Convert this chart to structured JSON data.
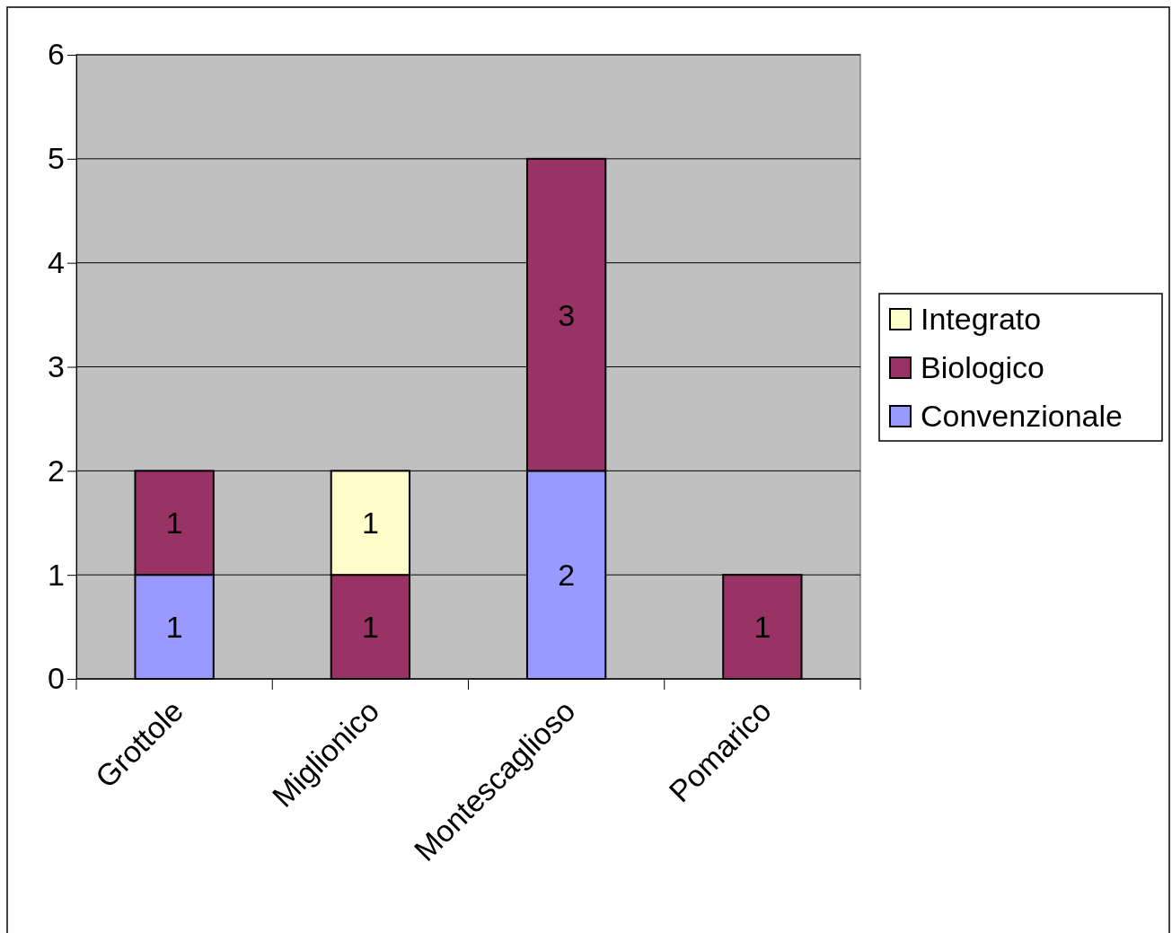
{
  "chart_data": {
    "type": "bar",
    "stacked": true,
    "categories": [
      "Grottole",
      "Miglionico",
      "Montescaglioso",
      "Pomarico"
    ],
    "series": [
      {
        "name": "Convenzionale",
        "color": "#9999ff",
        "values": [
          1,
          null,
          2,
          null
        ]
      },
      {
        "name": "Biologico",
        "color": "#993366",
        "values": [
          1,
          1,
          3,
          1
        ]
      },
      {
        "name": "Integrato",
        "color": "#ffffcc",
        "values": [
          null,
          1,
          null,
          null
        ]
      }
    ],
    "ylim": [
      0,
      6
    ],
    "yticks": [
      0,
      1,
      2,
      3,
      4,
      5,
      6
    ],
    "grid": "y",
    "legend": "right",
    "data_labels": true
  }
}
